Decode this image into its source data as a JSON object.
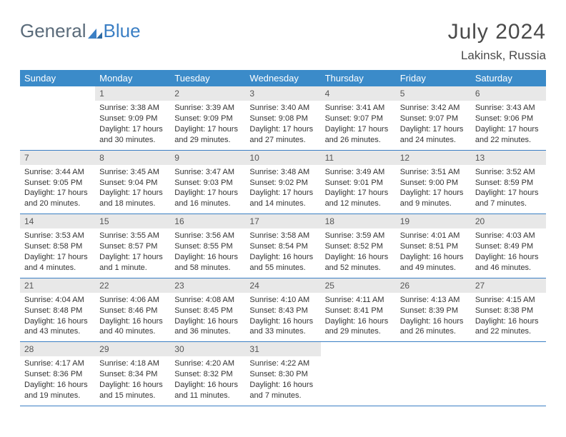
{
  "logo": {
    "word1": "General",
    "word2": "Blue"
  },
  "title": "July 2024",
  "location": "Lakinsk, Russia",
  "colors": {
    "header_bg": "#3b8bc9",
    "header_text": "#ffffff",
    "daynum_bg": "#e8e8e8",
    "daynum_text": "#555555",
    "border": "#3b7fc4",
    "page_bg": "#ffffff",
    "body_text": "#333333",
    "logo_grey": "#5a6b7a",
    "logo_blue": "#3b7fc4"
  },
  "fonts": {
    "title_size": 30,
    "location_size": 17,
    "logo_size": 26,
    "header_size": 13,
    "daynum_size": 12,
    "body_size": 11
  },
  "day_names": [
    "Sunday",
    "Monday",
    "Tuesday",
    "Wednesday",
    "Thursday",
    "Friday",
    "Saturday"
  ],
  "weeks": [
    [
      {
        "n": "",
        "l1": "",
        "l2": "",
        "l3": "",
        "l4": ""
      },
      {
        "n": "1",
        "l1": "Sunrise: 3:38 AM",
        "l2": "Sunset: 9:09 PM",
        "l3": "Daylight: 17 hours",
        "l4": "and 30 minutes."
      },
      {
        "n": "2",
        "l1": "Sunrise: 3:39 AM",
        "l2": "Sunset: 9:09 PM",
        "l3": "Daylight: 17 hours",
        "l4": "and 29 minutes."
      },
      {
        "n": "3",
        "l1": "Sunrise: 3:40 AM",
        "l2": "Sunset: 9:08 PM",
        "l3": "Daylight: 17 hours",
        "l4": "and 27 minutes."
      },
      {
        "n": "4",
        "l1": "Sunrise: 3:41 AM",
        "l2": "Sunset: 9:07 PM",
        "l3": "Daylight: 17 hours",
        "l4": "and 26 minutes."
      },
      {
        "n": "5",
        "l1": "Sunrise: 3:42 AM",
        "l2": "Sunset: 9:07 PM",
        "l3": "Daylight: 17 hours",
        "l4": "and 24 minutes."
      },
      {
        "n": "6",
        "l1": "Sunrise: 3:43 AM",
        "l2": "Sunset: 9:06 PM",
        "l3": "Daylight: 17 hours",
        "l4": "and 22 minutes."
      }
    ],
    [
      {
        "n": "7",
        "l1": "Sunrise: 3:44 AM",
        "l2": "Sunset: 9:05 PM",
        "l3": "Daylight: 17 hours",
        "l4": "and 20 minutes."
      },
      {
        "n": "8",
        "l1": "Sunrise: 3:45 AM",
        "l2": "Sunset: 9:04 PM",
        "l3": "Daylight: 17 hours",
        "l4": "and 18 minutes."
      },
      {
        "n": "9",
        "l1": "Sunrise: 3:47 AM",
        "l2": "Sunset: 9:03 PM",
        "l3": "Daylight: 17 hours",
        "l4": "and 16 minutes."
      },
      {
        "n": "10",
        "l1": "Sunrise: 3:48 AM",
        "l2": "Sunset: 9:02 PM",
        "l3": "Daylight: 17 hours",
        "l4": "and 14 minutes."
      },
      {
        "n": "11",
        "l1": "Sunrise: 3:49 AM",
        "l2": "Sunset: 9:01 PM",
        "l3": "Daylight: 17 hours",
        "l4": "and 12 minutes."
      },
      {
        "n": "12",
        "l1": "Sunrise: 3:51 AM",
        "l2": "Sunset: 9:00 PM",
        "l3": "Daylight: 17 hours",
        "l4": "and 9 minutes."
      },
      {
        "n": "13",
        "l1": "Sunrise: 3:52 AM",
        "l2": "Sunset: 8:59 PM",
        "l3": "Daylight: 17 hours",
        "l4": "and 7 minutes."
      }
    ],
    [
      {
        "n": "14",
        "l1": "Sunrise: 3:53 AM",
        "l2": "Sunset: 8:58 PM",
        "l3": "Daylight: 17 hours",
        "l4": "and 4 minutes."
      },
      {
        "n": "15",
        "l1": "Sunrise: 3:55 AM",
        "l2": "Sunset: 8:57 PM",
        "l3": "Daylight: 17 hours",
        "l4": "and 1 minute."
      },
      {
        "n": "16",
        "l1": "Sunrise: 3:56 AM",
        "l2": "Sunset: 8:55 PM",
        "l3": "Daylight: 16 hours",
        "l4": "and 58 minutes."
      },
      {
        "n": "17",
        "l1": "Sunrise: 3:58 AM",
        "l2": "Sunset: 8:54 PM",
        "l3": "Daylight: 16 hours",
        "l4": "and 55 minutes."
      },
      {
        "n": "18",
        "l1": "Sunrise: 3:59 AM",
        "l2": "Sunset: 8:52 PM",
        "l3": "Daylight: 16 hours",
        "l4": "and 52 minutes."
      },
      {
        "n": "19",
        "l1": "Sunrise: 4:01 AM",
        "l2": "Sunset: 8:51 PM",
        "l3": "Daylight: 16 hours",
        "l4": "and 49 minutes."
      },
      {
        "n": "20",
        "l1": "Sunrise: 4:03 AM",
        "l2": "Sunset: 8:49 PM",
        "l3": "Daylight: 16 hours",
        "l4": "and 46 minutes."
      }
    ],
    [
      {
        "n": "21",
        "l1": "Sunrise: 4:04 AM",
        "l2": "Sunset: 8:48 PM",
        "l3": "Daylight: 16 hours",
        "l4": "and 43 minutes."
      },
      {
        "n": "22",
        "l1": "Sunrise: 4:06 AM",
        "l2": "Sunset: 8:46 PM",
        "l3": "Daylight: 16 hours",
        "l4": "and 40 minutes."
      },
      {
        "n": "23",
        "l1": "Sunrise: 4:08 AM",
        "l2": "Sunset: 8:45 PM",
        "l3": "Daylight: 16 hours",
        "l4": "and 36 minutes."
      },
      {
        "n": "24",
        "l1": "Sunrise: 4:10 AM",
        "l2": "Sunset: 8:43 PM",
        "l3": "Daylight: 16 hours",
        "l4": "and 33 minutes."
      },
      {
        "n": "25",
        "l1": "Sunrise: 4:11 AM",
        "l2": "Sunset: 8:41 PM",
        "l3": "Daylight: 16 hours",
        "l4": "and 29 minutes."
      },
      {
        "n": "26",
        "l1": "Sunrise: 4:13 AM",
        "l2": "Sunset: 8:39 PM",
        "l3": "Daylight: 16 hours",
        "l4": "and 26 minutes."
      },
      {
        "n": "27",
        "l1": "Sunrise: 4:15 AM",
        "l2": "Sunset: 8:38 PM",
        "l3": "Daylight: 16 hours",
        "l4": "and 22 minutes."
      }
    ],
    [
      {
        "n": "28",
        "l1": "Sunrise: 4:17 AM",
        "l2": "Sunset: 8:36 PM",
        "l3": "Daylight: 16 hours",
        "l4": "and 19 minutes."
      },
      {
        "n": "29",
        "l1": "Sunrise: 4:18 AM",
        "l2": "Sunset: 8:34 PM",
        "l3": "Daylight: 16 hours",
        "l4": "and 15 minutes."
      },
      {
        "n": "30",
        "l1": "Sunrise: 4:20 AM",
        "l2": "Sunset: 8:32 PM",
        "l3": "Daylight: 16 hours",
        "l4": "and 11 minutes."
      },
      {
        "n": "31",
        "l1": "Sunrise: 4:22 AM",
        "l2": "Sunset: 8:30 PM",
        "l3": "Daylight: 16 hours",
        "l4": "and 7 minutes."
      },
      {
        "n": "",
        "l1": "",
        "l2": "",
        "l3": "",
        "l4": ""
      },
      {
        "n": "",
        "l1": "",
        "l2": "",
        "l3": "",
        "l4": ""
      },
      {
        "n": "",
        "l1": "",
        "l2": "",
        "l3": "",
        "l4": ""
      }
    ]
  ]
}
